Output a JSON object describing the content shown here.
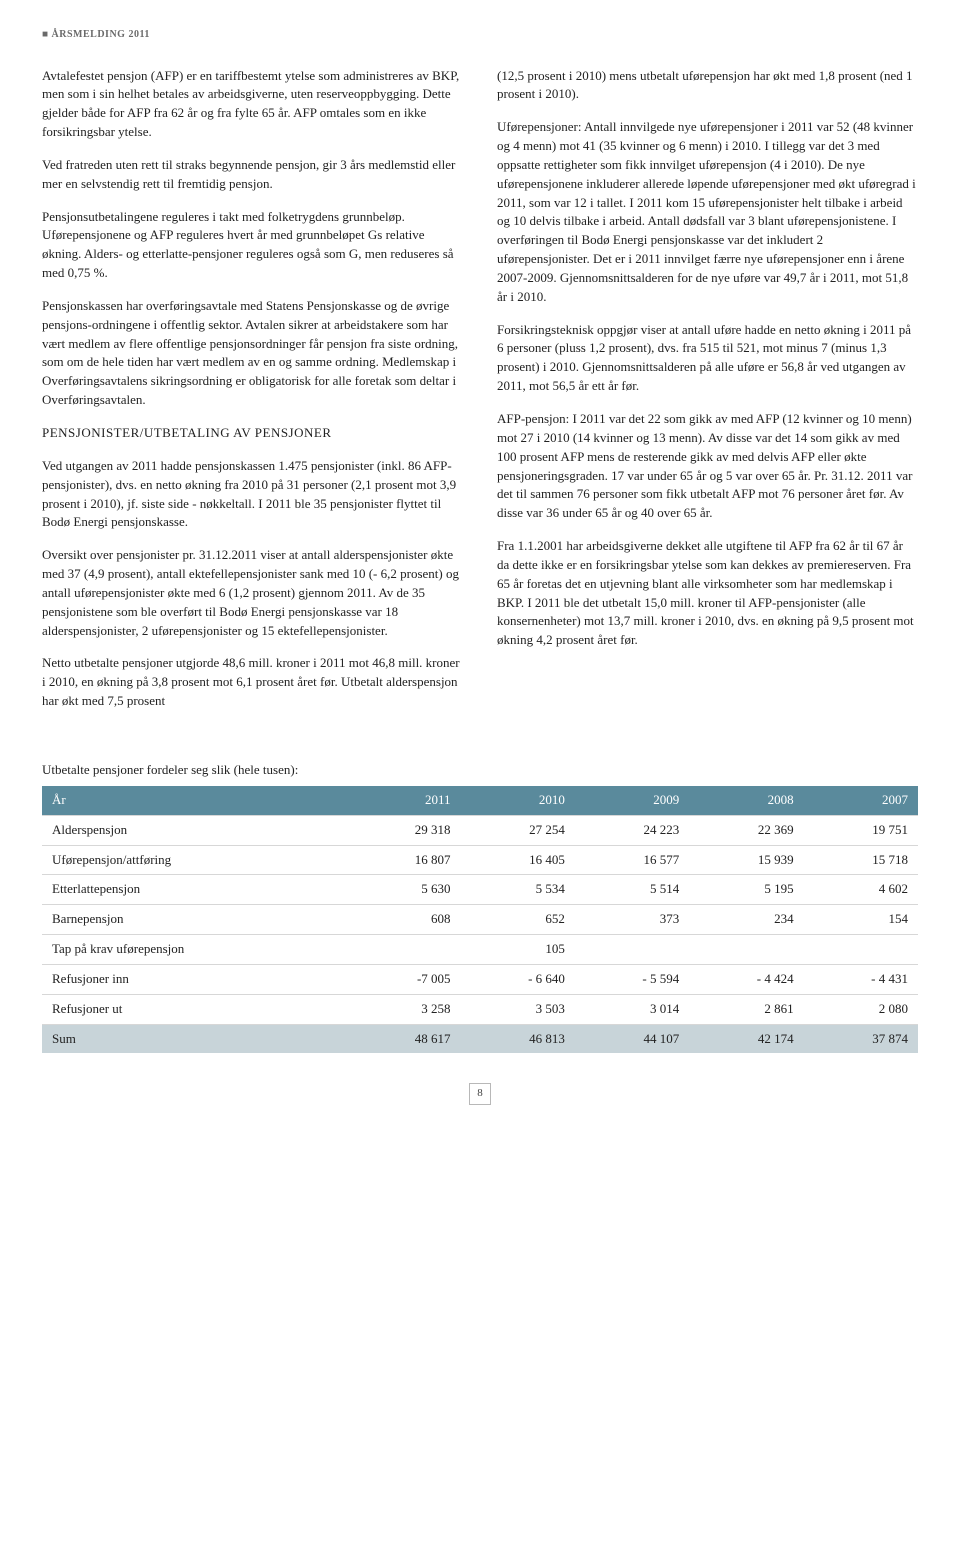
{
  "header": "ÅRSMELDING 2011",
  "left": {
    "p1": "Avtalefestet pensjon (AFP) er en tariffbestemt ytelse som administreres av BKP, men som i sin helhet betales av arbeidsgiverne, uten reserveoppbygging. Dette gjelder både for AFP fra 62 år og fra fylte 65 år. AFP omtales som en ikke forsikringsbar ytelse.",
    "p2": "Ved fratreden uten rett til straks begynnende pensjon, gir 3 års medlemstid eller mer en selvstendig rett til fremtidig pensjon.",
    "p3": "Pensjonsutbetalingene reguleres i takt med folketrygdens grunnbeløp. Uførepensjonene og AFP reguleres hvert år med grunnbeløpet Gs relative økning. Alders- og etterlatte-pensjoner reguleres også som G, men reduseres så med 0,75 %.",
    "p4": "Pensjonskassen har overføringsavtale med Statens Pensjonskasse og de øvrige pensjons-ordningene i offentlig sektor. Avtalen sikrer at arbeidstakere som har vært medlem av flere offentlige pensjonsordninger får pensjon fra siste ordning, som om de hele tiden har vært medlem av en og samme ordning. Medlemskap i Overføringsavtalens sikringsordning er obligatorisk for alle foretak som deltar i Overføringsavtalen.",
    "h1": "PENSJONISTER/UTBETALING AV PENSJONER",
    "p5": "Ved utgangen av 2011 hadde pensjonskassen 1.475 pensjonister (inkl. 86 AFP-pensjonister), dvs. en netto økning fra 2010 på 31 personer (2,1 prosent mot 3,9 prosent i 2010), jf. siste side - nøkkeltall. I 2011 ble 35 pensjonister flyttet til Bodø Energi pensjonskasse.",
    "p6": "Oversikt over pensjonister pr. 31.12.2011 viser at antall alderspensjonister økte med 37 (4,9 prosent), antall ektefellepensjonister sank med 10 (- 6,2 prosent) og antall uførepensjonister økte med 6 (1,2 prosent) gjennom 2011. Av de 35 pensjonistene som ble overført til Bodø Energi pensjonskasse var 18 alderspensjonister, 2 uførepensjonister og 15 ektefellepensjonister.",
    "p7": "Netto utbetalte pensjoner utgjorde 48,6 mill. kroner i 2011 mot 46,8 mill. kroner i 2010, en økning på 3,8 prosent mot 6,1 prosent året før. Utbetalt alderspensjon har økt med 7,5 prosent"
  },
  "right": {
    "p1": "(12,5 prosent i 2010) mens utbetalt uførepensjon har økt med 1,8 prosent (ned 1 prosent i 2010).",
    "p2": "Uførepensjoner: Antall innvilgede nye uførepensjoner i 2011 var 52 (48 kvinner og 4 menn) mot 41 (35 kvinner og 6 menn) i 2010. I tillegg var det 3 med oppsatte rettigheter som fikk innvilget uførepensjon (4 i 2010). De nye uførepensjonene inkluderer allerede løpende uførepensjoner med økt uføregrad i 2011, som var 12 i tallet. I 2011 kom 15 uførepensjonister helt tilbake i arbeid og 10 delvis tilbake i arbeid. Antall dødsfall var 3 blant uførepensjonistene.  I overføringen til Bodø Energi pensjonskasse var det inkludert 2 uførepensjonister. Det er i 2011 innvilget færre nye uførepensjoner enn i årene 2007-2009. Gjennomsnittsalderen for de nye uføre var 49,7 år i 2011, mot 51,8 år i 2010.",
    "p3": "Forsikringsteknisk oppgjør viser at antall uføre hadde en netto økning i 2011 på 6 personer (pluss 1,2 prosent), dvs. fra 515 til 521, mot minus 7 (minus 1,3 prosent) i 2010. Gjennomsnittsalderen på alle uføre er 56,8 år ved utgangen av 2011, mot 56,5 år ett år før.",
    "p4": "AFP-pensjon: I 2011 var det 22 som gikk av med AFP (12 kvinner og 10 menn) mot 27 i 2010 (14 kvinner og 13 menn). Av disse var det 14 som gikk av med 100 prosent AFP mens de resterende gikk av med delvis AFP eller økte pensjoneringsgraden. 17 var under 65 år og 5 var over 65 år. Pr. 31.12. 2011 var det til sammen 76 personer som fikk utbetalt AFP mot 76 personer året før. Av disse var 36 under 65 år og 40 over 65 år.",
    "p5": "Fra 1.1.2001 har arbeidsgiverne dekket alle utgiftene til AFP fra 62 år til 67 år da dette ikke er en forsikringsbar ytelse som kan dekkes av premiereserven. Fra 65 år foretas det en utjevning blant alle virksomheter som har medlemskap i BKP. I 2011 ble det utbetalt 15,0 mill. kroner til AFP-pensjonister (alle konsernenheter) mot 13,7 mill. kroner i 2010, dvs. en økning på 9,5 prosent mot økning 4,2 prosent året før."
  },
  "table": {
    "caption": "Utbetalte pensjoner fordeler seg slik (hele tusen):",
    "header_bg": "#5a8a9c",
    "header_fg": "#ffffff",
    "sum_bg": "#c8d4d9",
    "columns": [
      "År",
      "2011",
      "2010",
      "2009",
      "2008",
      "2007"
    ],
    "rows": [
      [
        "Alderspensjon",
        "29 318",
        "27 254",
        "24 223",
        "22 369",
        "19 751"
      ],
      [
        "Uførepensjon/attføring",
        "16 807",
        "16 405",
        "16 577",
        "15 939",
        "15 718"
      ],
      [
        "Etterlattepensjon",
        "5 630",
        "5 534",
        "5 514",
        "5 195",
        "4 602"
      ],
      [
        "Barnepensjon",
        "608",
        "652",
        "373",
        "234",
        "154"
      ],
      [
        "Tap på krav uførepensjon",
        "",
        "105",
        "",
        "",
        ""
      ],
      [
        "Refusjoner inn",
        "-7 005",
        "- 6 640",
        "- 5 594",
        "- 4 424",
        "- 4 431"
      ],
      [
        "Refusjoner ut",
        "3 258",
        "3 503",
        "3 014",
        "2 861",
        "2 080"
      ]
    ],
    "sum": [
      "Sum",
      "48 617",
      "46 813",
      "44 107",
      "42 174",
      "37 874"
    ]
  },
  "page_number": "8"
}
